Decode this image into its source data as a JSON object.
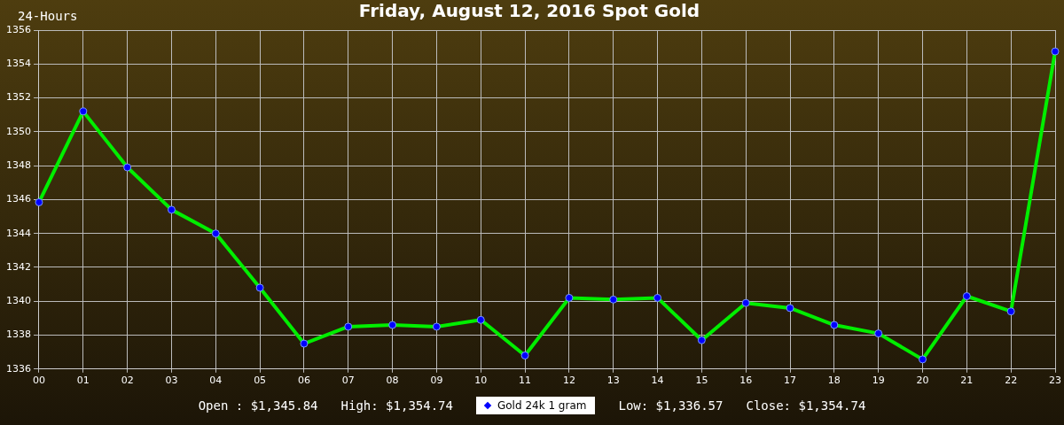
{
  "chart_data": {
    "type": "line",
    "title": "Friday, August 12, 2016 Spot Gold",
    "annotations": [
      "24-Hours",
      "Open : $1,345.84",
      "High: $1,354.74",
      "Low: $1,336.57",
      "Close: $1,354.74"
    ],
    "categories": [
      "00",
      "01",
      "02",
      "03",
      "04",
      "05",
      "06",
      "07",
      "08",
      "09",
      "10",
      "11",
      "12",
      "13",
      "14",
      "15",
      "16",
      "17",
      "18",
      "19",
      "20",
      "21",
      "22",
      "23"
    ],
    "series": [
      {
        "name": "Gold 24k 1 gram",
        "color": "#00ee00",
        "values": [
          1345.84,
          1351.2,
          1347.9,
          1345.4,
          1344.0,
          1340.8,
          1337.5,
          1338.5,
          1338.6,
          1338.5,
          1338.9,
          1336.8,
          1340.2,
          1340.1,
          1340.2,
          1337.7,
          1339.9,
          1339.6,
          1338.6,
          1338.1,
          1336.57,
          1340.3,
          1339.4,
          1354.74
        ]
      }
    ],
    "ylim": [
      1336,
      1356
    ],
    "yticks": [
      1336,
      1338,
      1340,
      1342,
      1344,
      1346,
      1348,
      1350,
      1352,
      1354,
      1356
    ],
    "grid": true,
    "legend": "bottom",
    "marker": "circle",
    "line_style": "solid"
  }
}
